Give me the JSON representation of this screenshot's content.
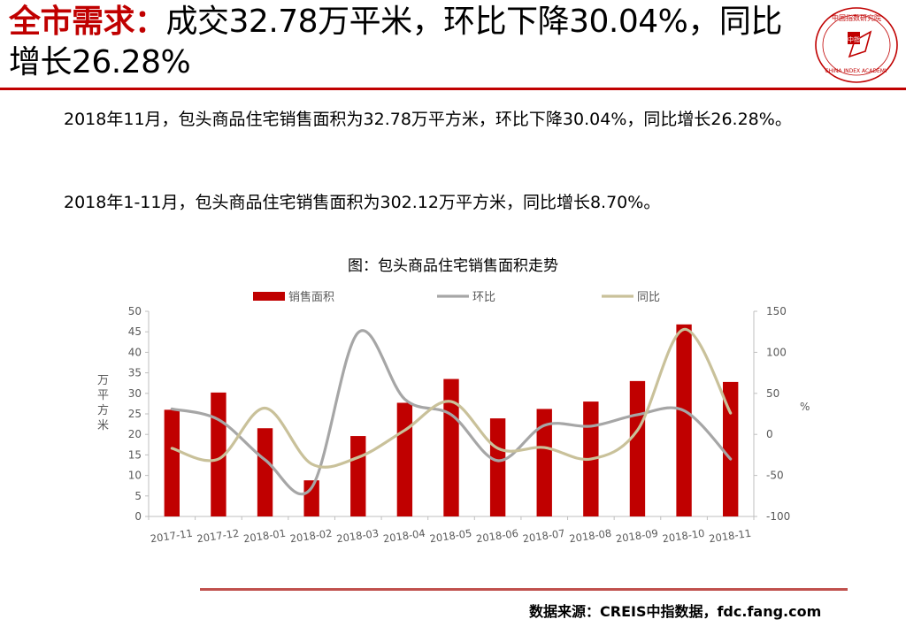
{
  "headline": {
    "lead": "全市需求：",
    "rest": "成交32.78万平米，环比下降30.04%，同比增长26.28%"
  },
  "logo": {
    "top_text": "中国指数研究院",
    "center_text": "中指",
    "bottom_text": "CHINA INDEX ACADEMY"
  },
  "paragraphs": [
    "2018年11月，包头商品住宅销售面积为32.78万平方米，环比下降30.04%，同比增长26.28%。",
    "2018年1-11月，包头商品住宅销售面积为302.12万平方米，同比增长8.70%。"
  ],
  "chart_title": "图：包头商品住宅销售面积走势",
  "source": "数据来源：CREIS中指数据，fdc.fang.com",
  "colors": {
    "accent": "#c00000",
    "bar": "#c00000",
    "mom": "#a6a6a6",
    "yoy": "#c9c19a"
  },
  "chart_data": {
    "type": "bar+line",
    "categories": [
      "2017-11",
      "2017-12",
      "2018-01",
      "2018-02",
      "2018-03",
      "2018-04",
      "2018-05",
      "2018-06",
      "2018-07",
      "2018-08",
      "2018-09",
      "2018-10",
      "2018-11"
    ],
    "series": [
      {
        "name": "销售面积",
        "type": "bar",
        "axis": "left",
        "values": [
          26.0,
          30.2,
          21.5,
          8.8,
          19.6,
          27.7,
          33.5,
          23.9,
          26.2,
          28.0,
          33.0,
          46.8,
          32.78
        ]
      },
      {
        "name": "环比",
        "type": "line",
        "axis": "right",
        "values": [
          31,
          18,
          -31,
          -65,
          124,
          43,
          24,
          -32,
          11,
          10,
          24,
          29,
          -30
        ]
      },
      {
        "name": "同比",
        "type": "line",
        "axis": "right",
        "values": [
          -17,
          -30,
          32,
          -36,
          -28,
          5,
          40,
          -17,
          -16,
          -30,
          5,
          128,
          26
        ]
      }
    ],
    "ylabel": "万平方米",
    "y2label": "%",
    "ylim": [
      0,
      50
    ],
    "yticks": [
      0,
      5,
      10,
      15,
      20,
      25,
      30,
      35,
      40,
      45,
      50
    ],
    "y2lim": [
      -100,
      150
    ],
    "y2ticks": [
      -100,
      -50,
      0,
      50,
      100,
      150
    ],
    "legend_position": "top-center",
    "grid": false
  }
}
